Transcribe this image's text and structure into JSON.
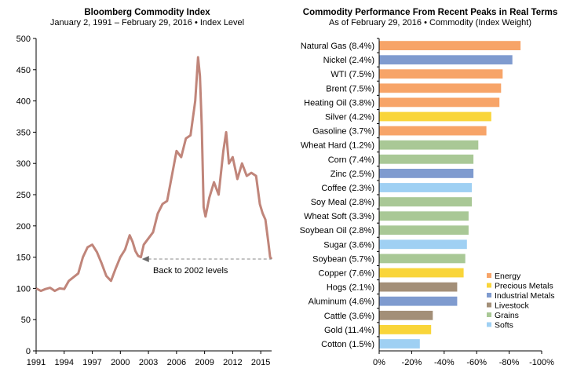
{
  "chart_data": [
    {
      "type": "line",
      "title": "Bloomberg Commodity Index",
      "subtitle": "January 2, 1991 – February 29, 2016 • Index Level",
      "xlabel": "",
      "ylabel": "",
      "xlim": [
        1991,
        2016.16
      ],
      "ylim": [
        0,
        500
      ],
      "x_ticks": [
        "1991",
        "1994",
        "1997",
        "2000",
        "2003",
        "2006",
        "2009",
        "2012",
        "2015"
      ],
      "y_ticks": [
        "0",
        "50",
        "100",
        "150",
        "200",
        "250",
        "300",
        "350",
        "400",
        "450",
        "500"
      ],
      "series": [
        {
          "color": "#c0857a",
          "x": [
            1991.0,
            1991.5,
            1992.0,
            1992.5,
            1993.0,
            1993.5,
            1994.0,
            1994.5,
            1995.0,
            1995.5,
            1996.0,
            1996.5,
            1997.0,
            1997.5,
            1998.0,
            1998.5,
            1999.0,
            1999.5,
            2000.0,
            2000.5,
            2001.0,
            2001.3,
            2001.6,
            2001.9,
            2002.2,
            2002.5,
            2003.0,
            2003.5,
            2004.0,
            2004.5,
            2005.0,
            2005.5,
            2006.0,
            2006.5,
            2007.0,
            2007.5,
            2008.0,
            2008.3,
            2008.5,
            2008.7,
            2008.9,
            2009.1,
            2009.5,
            2010.0,
            2010.5,
            2011.0,
            2011.3,
            2011.6,
            2012.0,
            2012.5,
            2013.0,
            2013.5,
            2014.0,
            2014.5,
            2014.9,
            2015.2,
            2015.5,
            2015.8,
            2016.0,
            2016.16
          ],
          "y": [
            100,
            96,
            99,
            101,
            96,
            100,
            99,
            112,
            118,
            124,
            150,
            166,
            170,
            158,
            140,
            120,
            112,
            132,
            150,
            162,
            185,
            175,
            160,
            152,
            150,
            170,
            180,
            190,
            220,
            235,
            240,
            280,
            320,
            310,
            340,
            345,
            400,
            470,
            440,
            360,
            230,
            215,
            245,
            270,
            250,
            320,
            350,
            300,
            310,
            275,
            300,
            280,
            285,
            280,
            235,
            220,
            210,
            175,
            150,
            147
          ]
        }
      ],
      "annotation": "Back to 2002 levels",
      "reference_level": 147
    },
    {
      "type": "bar",
      "title": "Commodity Performance From Recent Peaks in Real Terms",
      "subtitle": "As of February 29, 2016 • Commodity  (Index Weight)",
      "xlabel": "",
      "ylabel": "",
      "xlim": [
        0,
        -100
      ],
      "x_ticks": [
        "0%",
        "-20%",
        "-40%",
        "-60%",
        "-80%",
        "-100%"
      ],
      "categories": [
        "Natural Gas (8.4%)",
        "Nickel (2.4%)",
        "WTI (7.5%)",
        "Brent (7.5%)",
        "Heating Oil (3.8%)",
        "Silver (4.2%)",
        "Gasoline (3.7%)",
        "Wheat Hard (1.2%)",
        "Corn (7.4%)",
        "Zinc (2.5%)",
        "Coffee (2.3%)",
        "Soy Meal (2.8%)",
        "Wheat Soft (3.3%)",
        "Soybean Oil (2.8%)",
        "Sugar (3.6%)",
        "Soybean (5.7%)",
        "Copper (7.6%)",
        "Hogs (2.1%)",
        "Aluminum (4.6%)",
        "Cattle (3.6%)",
        "Gold (11.4%)",
        "Cotton (1.5%)"
      ],
      "values": [
        -87,
        -82,
        -76,
        -75,
        -74,
        -69,
        -66,
        -61,
        -58,
        -58,
        -57,
        -57,
        -55,
        -55,
        -54,
        -53,
        -52,
        -48,
        -48,
        -33,
        -32,
        -25
      ],
      "groups": [
        "Energy",
        "Industrial Metals",
        "Energy",
        "Energy",
        "Energy",
        "Precious Metals",
        "Energy",
        "Grains",
        "Grains",
        "Industrial Metals",
        "Softs",
        "Grains",
        "Grains",
        "Grains",
        "Softs",
        "Grains",
        "Precious Metals",
        "Livestock",
        "Industrial Metals",
        "Livestock",
        "Precious Metals",
        "Softs"
      ],
      "legend": [
        {
          "name": "Energy",
          "color": "#f7a468"
        },
        {
          "name": "Precious Metals",
          "color": "#f9d53a"
        },
        {
          "name": "Industrial Metals",
          "color": "#7f9bcf"
        },
        {
          "name": "Livestock",
          "color": "#a38f78"
        },
        {
          "name": "Grains",
          "color": "#a9c896"
        },
        {
          "name": "Softs",
          "color": "#9fd0f3"
        }
      ],
      "legend_position": "bottom-right"
    }
  ]
}
